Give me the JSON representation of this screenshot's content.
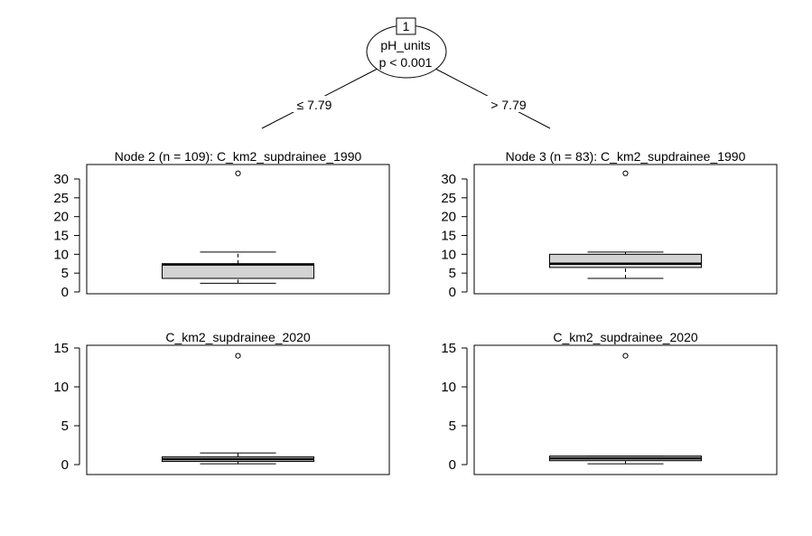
{
  "chart_data": {
    "type": "boxplot-tree",
    "root": {
      "id": "1",
      "variable": "pH_units",
      "pvalue": "p < 0.001",
      "left_edge": "≤ 7.79",
      "right_edge": "> 7.79"
    },
    "nodes": [
      {
        "title": "Node 2 (n = 109): C_km2_supdrainee_1990",
        "panels": [
          {
            "title": "Node 2 (n = 109): C_km2_supdrainee_1990",
            "ylim": [
              0,
              32
            ],
            "ticks": [
              "0",
              "5",
              "10",
              "15",
              "20",
              "25",
              "30"
            ],
            "box": {
              "whisker_low": 2.3,
              "q1": 3.6,
              "median": 7.3,
              "q3": 7.5,
              "whisker_high": 10.6
            },
            "outliers": [
              31.5
            ]
          },
          {
            "title": "C_km2_supdrainee_2020",
            "ylim": [
              0,
              15
            ],
            "ticks": [
              "0",
              "5",
              "10",
              "15"
            ],
            "box": {
              "whisker_low": 0.1,
              "q1": 0.4,
              "median": 0.7,
              "q3": 1.0,
              "whisker_high": 1.5
            },
            "outliers": [
              14
            ]
          }
        ]
      },
      {
        "title": "Node 3 (n = 83): C_km2_supdrainee_1990",
        "panels": [
          {
            "title": "Node 3 (n = 83): C_km2_supdrainee_1990",
            "ylim": [
              0,
              32
            ],
            "ticks": [
              "0",
              "5",
              "10",
              "15",
              "20",
              "25",
              "30"
            ],
            "box": {
              "whisker_low": 3.6,
              "q1": 6.5,
              "median": 7.5,
              "q3": 10.0,
              "whisker_high": 10.6
            },
            "outliers": [
              31.5
            ]
          },
          {
            "title": "C_km2_supdrainee_2020",
            "ylim": [
              0,
              15
            ],
            "ticks": [
              "0",
              "5",
              "10",
              "15"
            ],
            "box": {
              "whisker_low": 0.1,
              "q1": 0.5,
              "median": 0.8,
              "q3": 1.1,
              "whisker_high": 1.1
            },
            "outliers": [
              14
            ]
          }
        ]
      }
    ]
  }
}
